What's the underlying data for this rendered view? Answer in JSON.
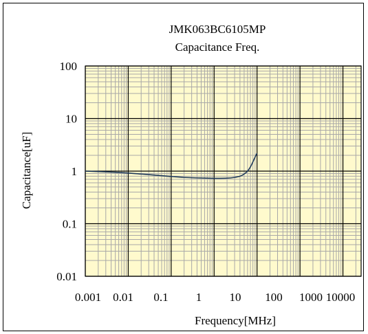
{
  "chart_data": {
    "type": "line",
    "title": "JMK063BC6105MP",
    "subtitle": "Capacitance Freq.",
    "xlabel": "Frequency[MHz]",
    "ylabel": "Capacitance[uF]",
    "x_scale": "log",
    "y_scale": "log",
    "xlim": [
      0.001,
      10000
    ],
    "ylim": [
      0.01,
      100
    ],
    "x_ticks": [
      0.001,
      0.01,
      0.1,
      1,
      10,
      100,
      1000,
      10000
    ],
    "x_tick_labels": [
      "0.001",
      "0.01",
      "0.1",
      "1",
      "10",
      "100",
      "1000",
      "10000"
    ],
    "y_ticks": [
      0.01,
      0.1,
      1,
      10,
      100
    ],
    "y_tick_labels": [
      "0.01",
      "0.1",
      "1",
      "10",
      "100"
    ],
    "grid": true,
    "legend": "none",
    "colors": {
      "plot_background": "#fffacd",
      "minor_grid": "#a8a8a8",
      "major_grid": "#000000",
      "series": "#1f3a5a"
    },
    "series": [
      {
        "x": [
          0.001,
          0.002,
          0.005,
          0.01,
          0.02,
          0.05,
          0.1,
          0.2,
          0.5,
          1,
          2,
          3,
          4,
          5,
          6,
          7,
          8,
          9,
          10
        ],
        "y": [
          1.0,
          0.98,
          0.95,
          0.92,
          0.88,
          0.83,
          0.79,
          0.76,
          0.74,
          0.73,
          0.735,
          0.76,
          0.8,
          0.88,
          1.0,
          1.2,
          1.5,
          1.85,
          2.2
        ]
      }
    ]
  }
}
